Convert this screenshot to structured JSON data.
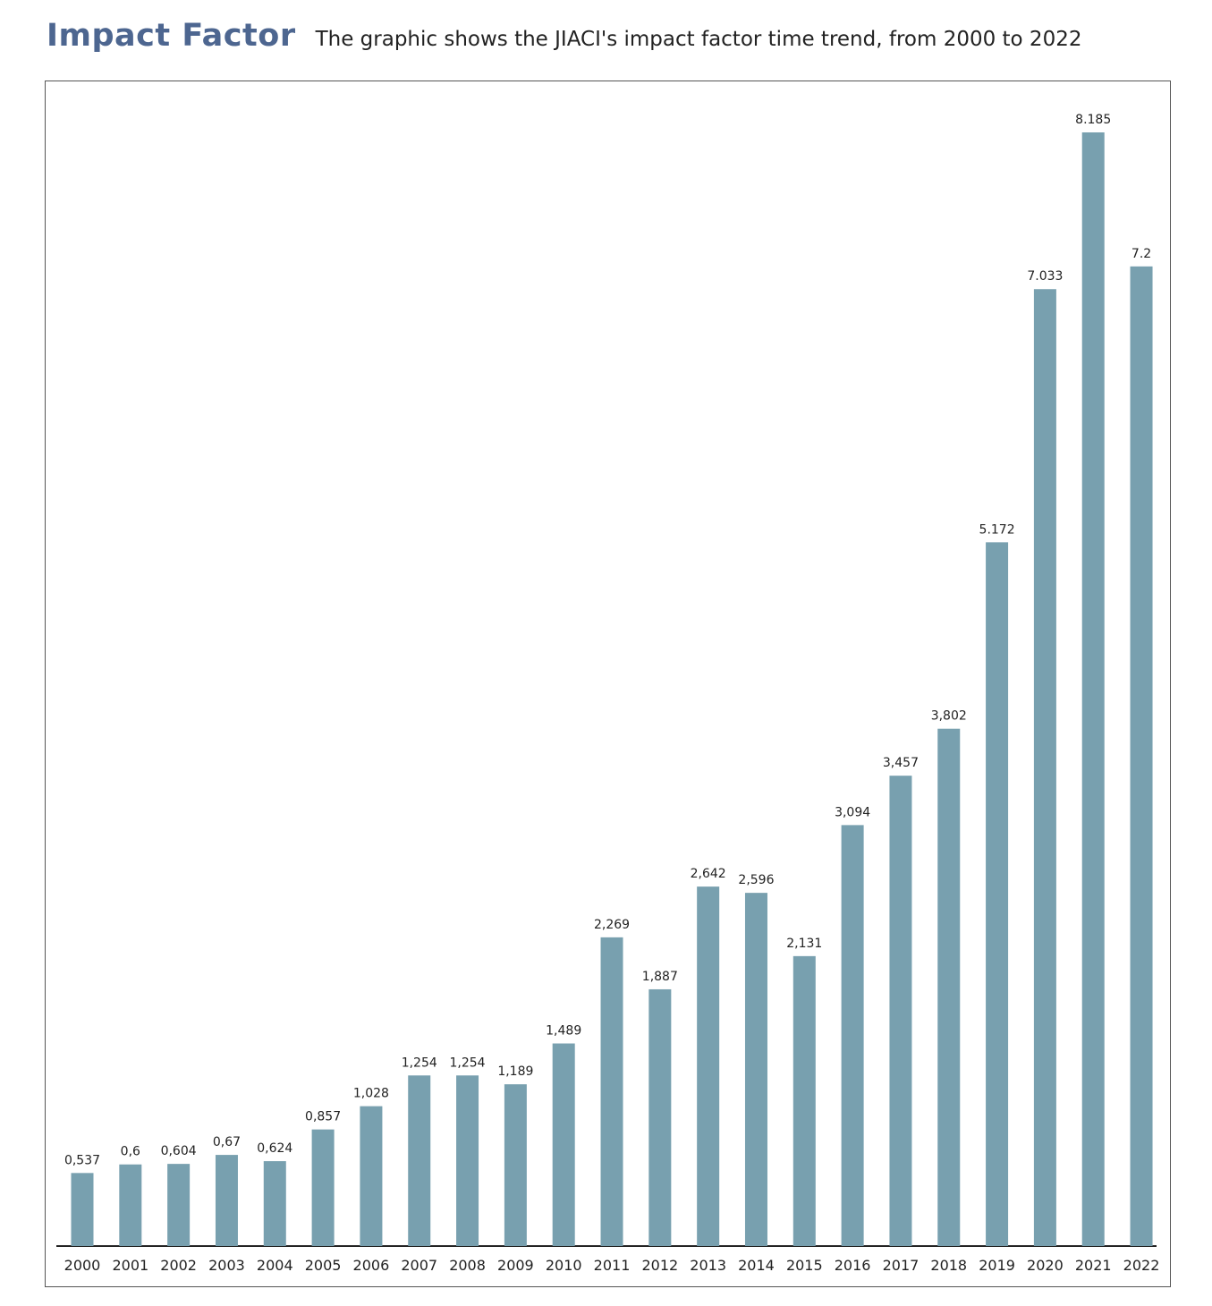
{
  "header": {
    "title": "Impact Factor",
    "subtitle": "The graphic shows the JIACI's impact factor time trend, from 2000 to 2022"
  },
  "colors": {
    "title": "#4d6690",
    "bar": "#78a0af",
    "axis": "#222222",
    "frame": "#555555"
  },
  "chart_data": {
    "type": "bar",
    "categories": [
      "2000",
      "2001",
      "2002",
      "2003",
      "2004",
      "2005",
      "2006",
      "2007",
      "2008",
      "2009",
      "2010",
      "2011",
      "2012",
      "2013",
      "2014",
      "2015",
      "2016",
      "2017",
      "2018",
      "2019",
      "2020",
      "2021",
      "2022"
    ],
    "values": [
      0.537,
      0.6,
      0.604,
      0.67,
      0.624,
      0.857,
      1.028,
      1.254,
      1.254,
      1.189,
      1.489,
      2.269,
      1.887,
      2.642,
      2.596,
      2.131,
      3.094,
      3.457,
      3.802,
      5.172,
      7.033,
      8.185,
      7.2
    ],
    "value_labels": [
      "0,537",
      "0,6",
      "0,604",
      "0,67",
      "0,624",
      "0,857",
      "1,028",
      "1,254",
      "1,254",
      "1,189",
      "1,489",
      "2,269",
      "1,887",
      "2,642",
      "2,596",
      "2,131",
      "3,094",
      "3,457",
      "3,802",
      "5.172",
      "7.033",
      "8.185",
      "7.2"
    ],
    "title": "Impact Factor",
    "subtitle": "The graphic shows the JIACI's impact factor time trend, from 2000 to 2022",
    "xlabel": "",
    "ylabel": "",
    "ylim": [
      0,
      8.185
    ],
    "grid": false,
    "legend": "none"
  }
}
